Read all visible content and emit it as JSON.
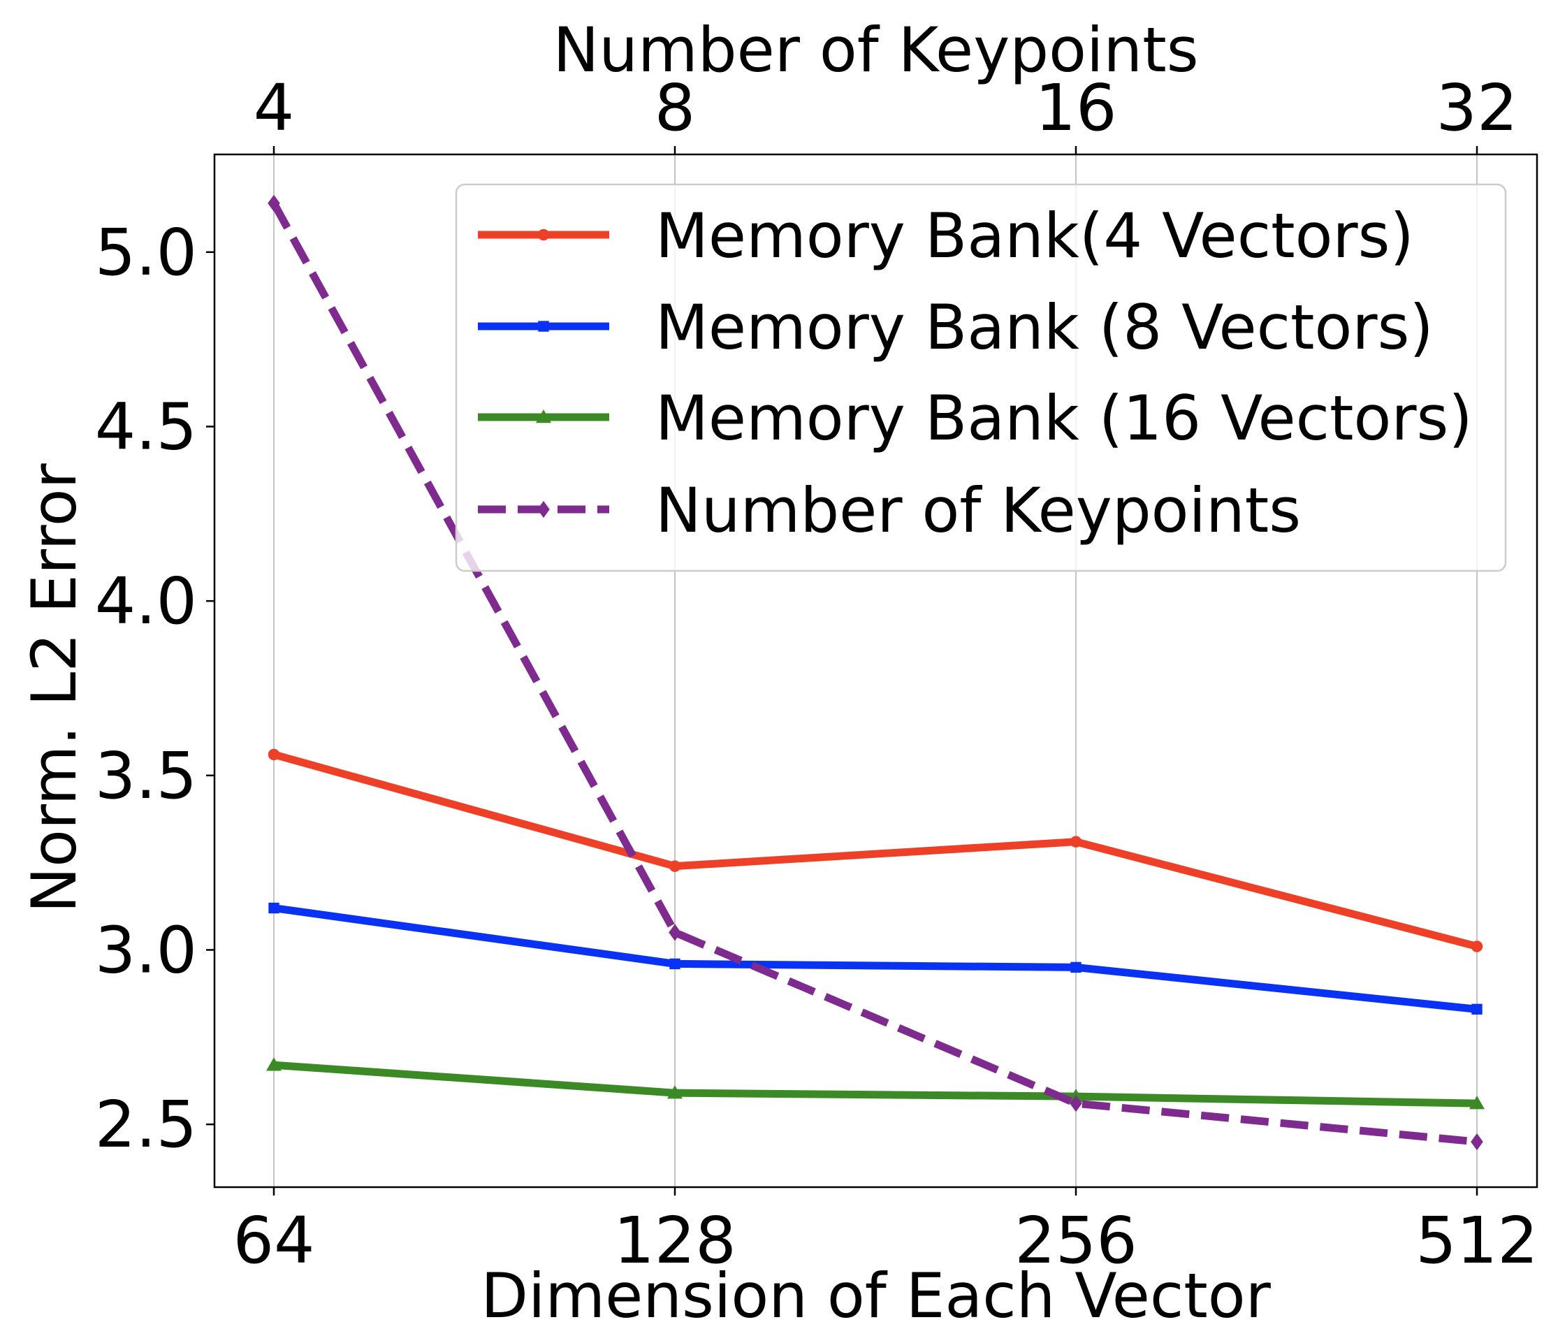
{
  "chart_data": {
    "type": "line",
    "x_bottom": {
      "categories": [
        "64",
        "128",
        "256",
        "512"
      ],
      "label": "Dimension of Each Vector"
    },
    "x_top": {
      "categories": [
        "4",
        "8",
        "16",
        "32"
      ],
      "label": "Number of Keypoints"
    },
    "y": {
      "label": "Norm. L2 Error",
      "ylim": [
        2.32,
        5.28
      ],
      "ticks": [
        "2.5",
        "3.0",
        "3.5",
        "4.0",
        "4.5",
        "5.0"
      ]
    },
    "grid": "vertical",
    "legend_position": "top-right",
    "series": [
      {
        "name": "Memory Bank(4 Vectors)",
        "values": [
          3.56,
          3.24,
          3.31,
          3.01
        ],
        "color": "#ee4027",
        "marker": "circle",
        "dash": "solid",
        "axis": "bottom"
      },
      {
        "name": "Memory Bank (8 Vectors)",
        "values": [
          3.12,
          2.96,
          2.95,
          2.83
        ],
        "color": "#0a32f5",
        "marker": "square",
        "dash": "solid",
        "axis": "bottom"
      },
      {
        "name": "Memory Bank (16 Vectors)",
        "values": [
          2.67,
          2.59,
          2.58,
          2.56
        ],
        "color": "#3b8a26",
        "marker": "triangle",
        "dash": "solid",
        "axis": "bottom"
      },
      {
        "name": "Number of Keypoints",
        "values": [
          5.14,
          3.05,
          2.56,
          2.45
        ],
        "color": "#7f2a8e",
        "marker": "diamond",
        "dash": "dashed",
        "axis": "top"
      }
    ]
  }
}
